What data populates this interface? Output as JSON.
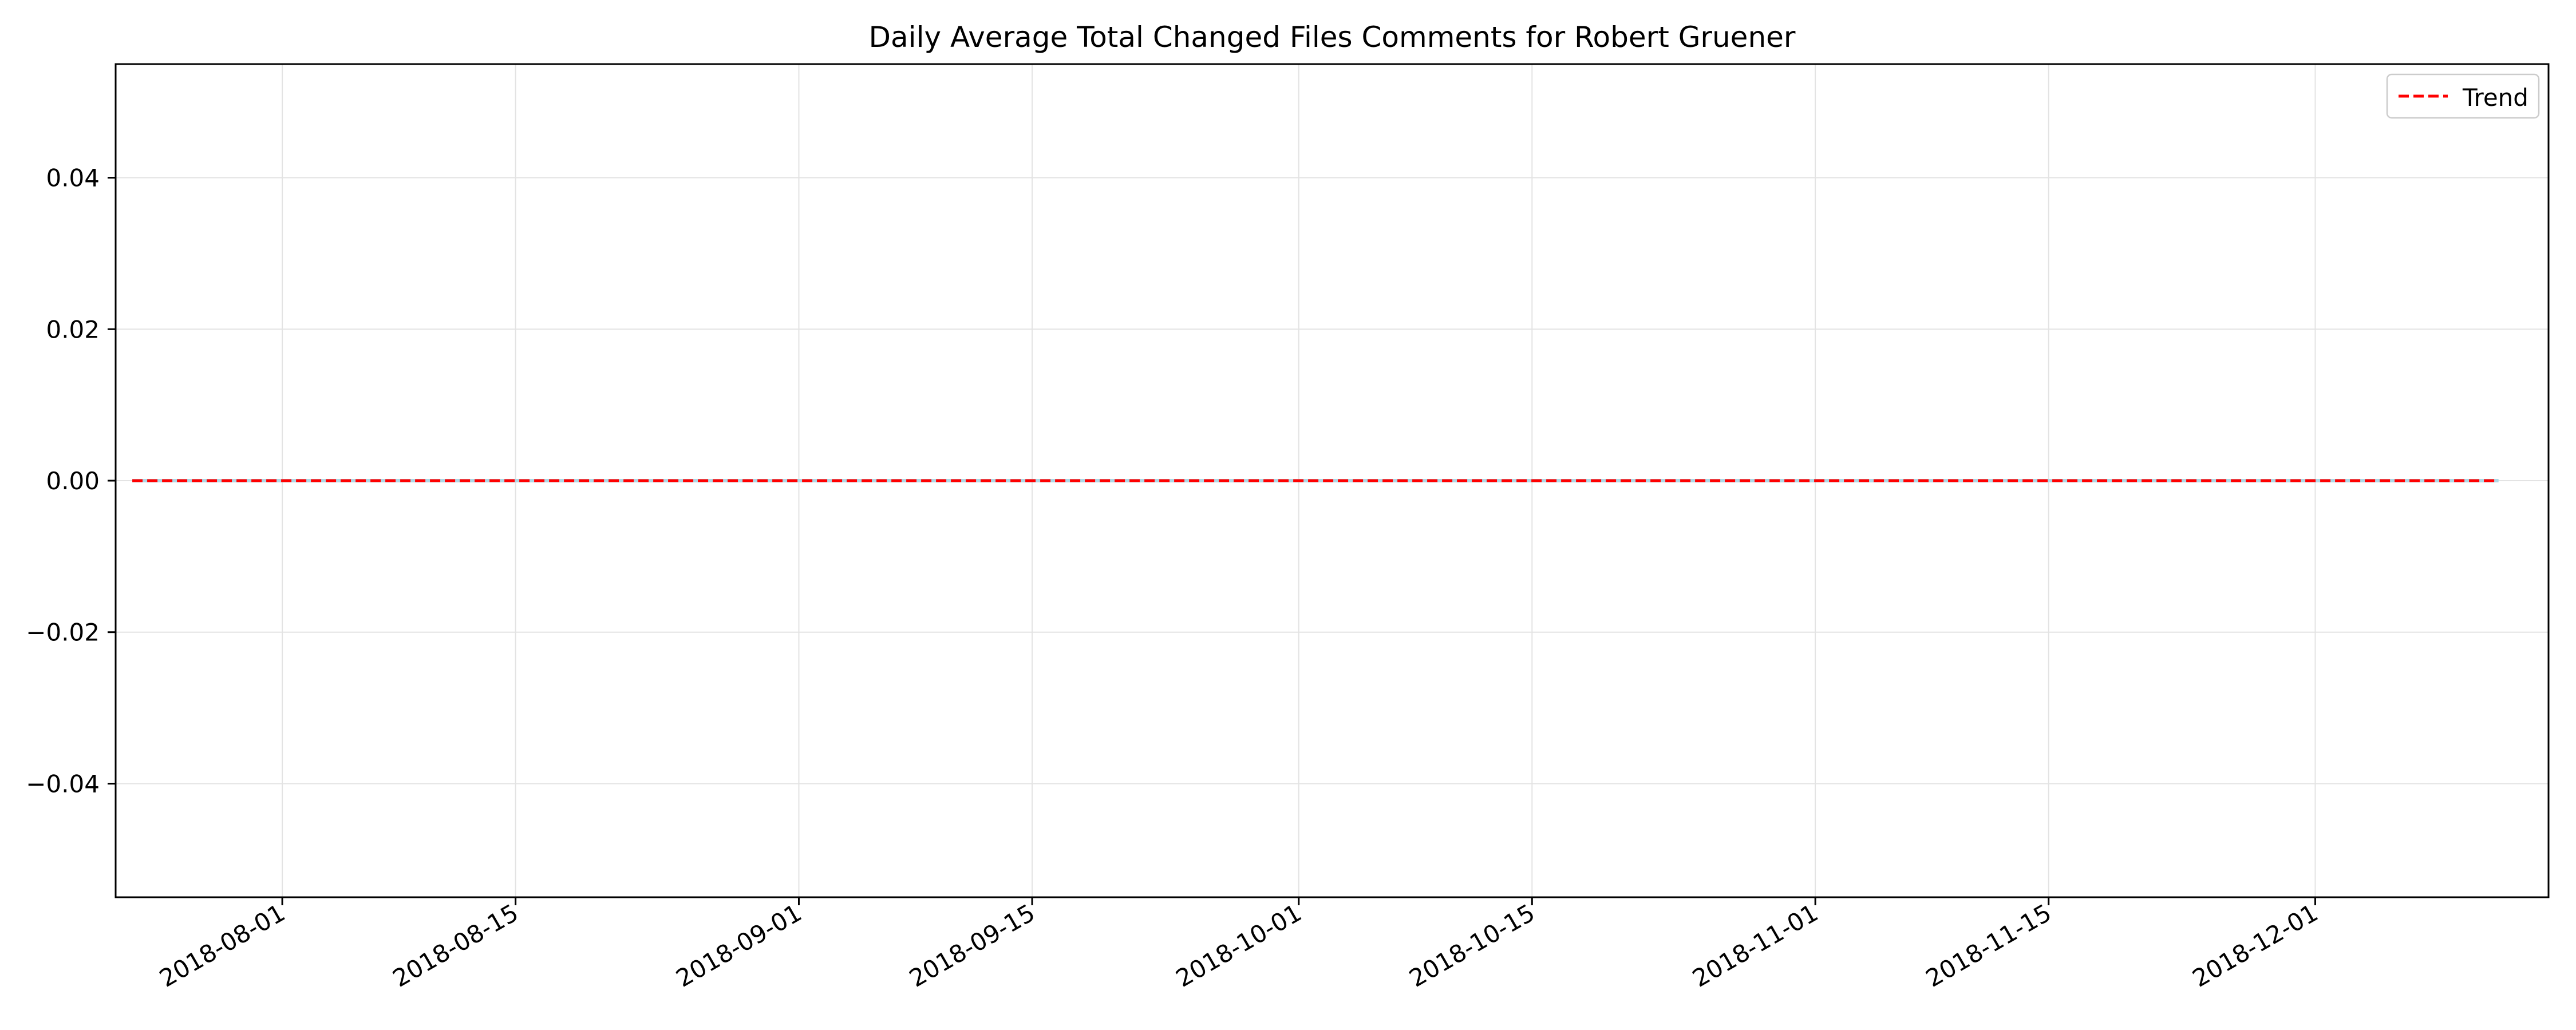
{
  "chart_data": {
    "type": "line",
    "title": "Daily Average Total Changed Files Comments for Robert Gruener",
    "xlabel": "",
    "ylabel": "",
    "x_range": [
      "2018-07-22",
      "2018-12-15"
    ],
    "ylim": [
      -0.055,
      0.055
    ],
    "x_ticks": [
      "2018-08-01",
      "2018-08-15",
      "2018-09-01",
      "2018-09-15",
      "2018-10-01",
      "2018-10-15",
      "2018-11-01",
      "2018-11-15",
      "2018-12-01"
    ],
    "y_ticks": [
      -0.04,
      -0.02,
      0.0,
      0.02,
      0.04
    ],
    "y_tick_labels": [
      "−0.04",
      "−0.02",
      "0.00",
      "0.02",
      "0.04"
    ],
    "grid": true,
    "legend_position": "top-right",
    "series": [
      {
        "name": "",
        "style": "solid",
        "color": "#add8e6",
        "x": [
          "2018-07-23",
          "2018-12-12"
        ],
        "y": [
          0,
          0
        ]
      },
      {
        "name": "Trend",
        "style": "dashed",
        "color": "#ff0000",
        "x": [
          "2018-07-23",
          "2018-12-12"
        ],
        "y": [
          0,
          0
        ]
      }
    ]
  }
}
